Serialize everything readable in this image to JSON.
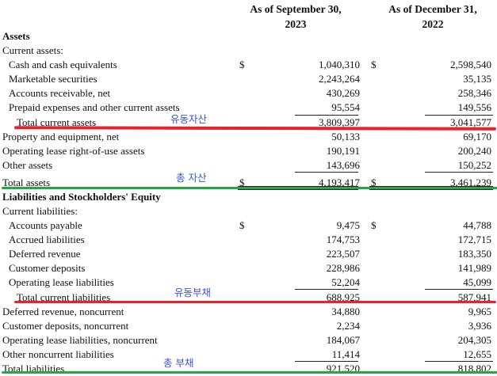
{
  "headers": {
    "col1_line1": "As of September 30,",
    "col1_line2": "2023",
    "col2_line1": "As of December 31,",
    "col2_line2": "2022"
  },
  "rows": [
    {
      "label": "Assets",
      "bold": true,
      "indent": 0
    },
    {
      "label": "Current assets:",
      "indent": 0
    },
    {
      "label": "Cash and cash equivalents",
      "indent": 1,
      "d1": "$",
      "v1": "1,040,310",
      "d2": "$",
      "v2": "2,598,540"
    },
    {
      "label": "Marketable securities",
      "indent": 1,
      "v1": "2,243,264",
      "v2": "35,135"
    },
    {
      "label": "Accounts receivable, net",
      "indent": 1,
      "v1": "430,269",
      "v2": "258,346"
    },
    {
      "label": "Prepaid expenses and other current assets",
      "indent": 1,
      "v1": "95,554",
      "v2": "149,556"
    },
    {
      "label": "Total current assets",
      "indent": 2,
      "v1": "3,809,397",
      "v2": "3,041,577"
    },
    {
      "label": "Property and equipment, net",
      "indent": 0,
      "v1": "50,133",
      "v2": "69,170"
    },
    {
      "label": "Operating lease right-of-use assets",
      "indent": 0,
      "v1": "190,191",
      "v2": "200,240"
    },
    {
      "label": "Other assets",
      "indent": 0,
      "v1": "143,696",
      "v2": "150,252"
    },
    {
      "label": "Total assets",
      "indent": 0,
      "d1": "$",
      "v1": "4,193,417",
      "d2": "$",
      "v2": "3,461,239"
    },
    {
      "label": "Liabilities and Stockholders' Equity",
      "bold": true,
      "indent": 0
    },
    {
      "label": "Current liabilities:",
      "indent": 0
    },
    {
      "label": "Accounts payable",
      "indent": 1,
      "d1": "$",
      "v1": "9,475",
      "d2": "$",
      "v2": "44,788"
    },
    {
      "label": "Accrued liabilities",
      "indent": 1,
      "v1": "174,753",
      "v2": "172,715"
    },
    {
      "label": "Deferred revenue",
      "indent": 1,
      "v1": "223,507",
      "v2": "183,350"
    },
    {
      "label": "Customer deposits",
      "indent": 1,
      "v1": "228,986",
      "v2": "141,989"
    },
    {
      "label": "Operating lease liabilities",
      "indent": 1,
      "v1": "52,204",
      "v2": "45,099"
    },
    {
      "label": "Total current liabilities",
      "indent": 2,
      "v1": "688,925",
      "v2": "587,941"
    },
    {
      "label": "Deferred revenue, noncurrent",
      "indent": 0,
      "v1": "34,880",
      "v2": "9,965"
    },
    {
      "label": "Customer deposits, noncurrent",
      "indent": 0,
      "v1": "2,234",
      "v2": "3,936"
    },
    {
      "label": "Operating lease liabilities, noncurrent",
      "indent": 0,
      "v1": "184,067",
      "v2": "204,305"
    },
    {
      "label": "Other noncurrent liabilities",
      "indent": 0,
      "v1": "11,414",
      "v2": "12,655"
    },
    {
      "label": "Total liabilities",
      "indent": 0,
      "v1": "921,520",
      "v2": "818,802"
    }
  ],
  "annotations": {
    "current_assets_note": "유동자산",
    "total_assets_note": "총 자산",
    "current_liabilities_note": "유동부채",
    "total_liabilities_note": "총 부채"
  },
  "colors": {
    "red_marker": "#e8232b",
    "green_marker": "#22a845",
    "annotation_text": "#3a55d8"
  }
}
